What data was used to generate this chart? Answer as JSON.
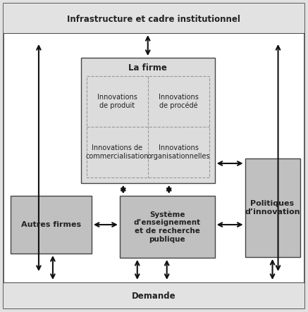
{
  "fig_width": 4.37,
  "fig_height": 4.43,
  "bg_outer": "#e2e2e2",
  "bg_white": "#ffffff",
  "lafirme_color": "#dcdcdc",
  "box_dark_color": "#c0c0c0",
  "border_color": "#444444",
  "arrow_color": "#111111",
  "text_color": "#222222",
  "dashed_color": "#999999",
  "top_label": "Infrastructure et cadre institutionnel",
  "bottom_label": "Demande",
  "lafirme_label": "La firme",
  "innov_produit": "Innovations\nde produit",
  "innov_procede": "Innovations\nde procédé",
  "innov_commerc": "Innovations de\ncommercialisation",
  "innov_organ": "Innovations\norganisationnelles",
  "autres_firmes": "Autres firmes",
  "systeme": "Système\nd’enseignement\net de recherche\npublique",
  "politiques": "Politiques\nd’innovation"
}
